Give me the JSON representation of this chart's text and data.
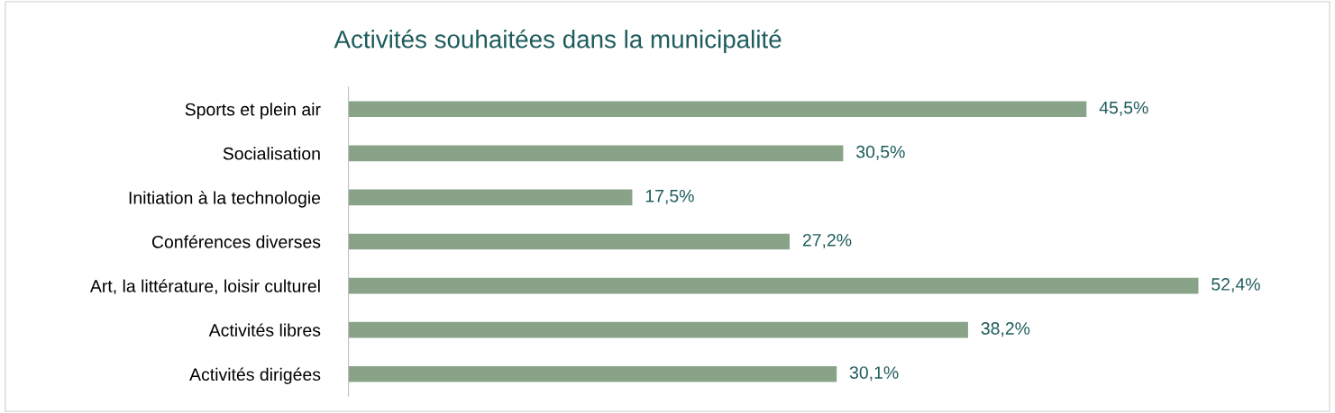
{
  "chart_data": {
    "type": "bar",
    "orientation": "horizontal",
    "title": "Activités souhaitées dans la municipalité",
    "categories": [
      "Sports et plein air",
      "Socialisation",
      "Initiation à la technologie",
      "Conférences diverses",
      "Art, la littérature, loisir culturel",
      "Activités libres",
      "Activités dirigées"
    ],
    "values": [
      45.5,
      30.5,
      17.5,
      27.2,
      52.4,
      38.2,
      30.1
    ],
    "value_labels": [
      "45,5%",
      "30,5%",
      "17,5%",
      "27,2%",
      "52,4%",
      "38,2%",
      "30,1%"
    ],
    "color": "#88a388",
    "grid": false,
    "legend": false
  }
}
